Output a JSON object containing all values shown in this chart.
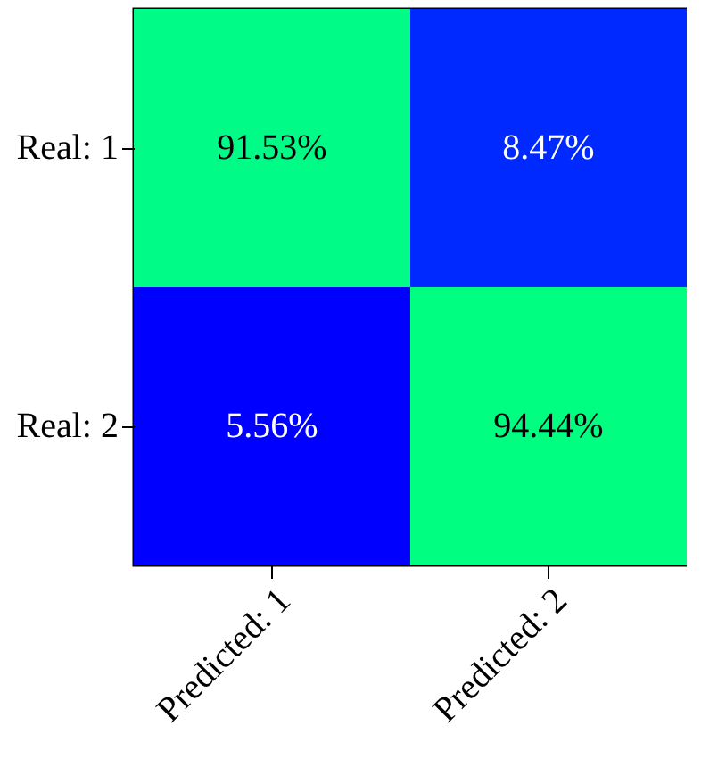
{
  "chart_data": {
    "type": "heatmap",
    "categories": [
      "Predicted: 1",
      "Predicted: 2"
    ],
    "y_categories": [
      "Real: 1",
      "Real: 2"
    ],
    "cells": [
      [
        91.53,
        8.47
      ],
      [
        5.56,
        94.44
      ]
    ],
    "cell_labels": [
      [
        "91.53%",
        "8.47%"
      ],
      [
        "5.56%",
        "94.44%"
      ]
    ],
    "colors": [
      "#0000ff",
      "#00ff80"
    ]
  }
}
